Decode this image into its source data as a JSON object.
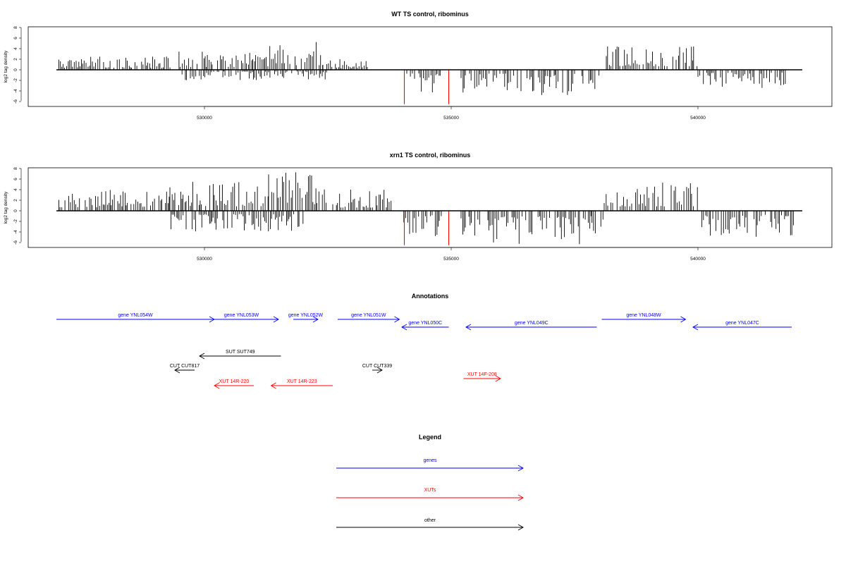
{
  "chart_data": [
    {
      "type": "bar",
      "title": "WT TS control, ribominus",
      "xlabel": "",
      "ylabel": "log2 tag density",
      "xlim": [
        527000,
        542000
      ],
      "ylim": [
        -7,
        8
      ],
      "x_ticks": [
        530000,
        535000,
        540000
      ],
      "y_ticks": [
        8,
        6,
        4,
        2,
        0,
        -2,
        -4,
        -6
      ],
      "baseline": 0,
      "grid": false,
      "bar_color": "#000000",
      "highlight_color": "#ff0000",
      "highlight_bars": [
        {
          "x": 534050,
          "y": -6.5
        },
        {
          "x": 534950,
          "y": -6.5
        }
      ],
      "density_profile": [
        {
          "start": 527050,
          "end": 529400,
          "strand": "+",
          "max": 2.5
        },
        {
          "start": 529400,
          "end": 531300,
          "strand": "+",
          "max": 3.5
        },
        {
          "start": 531300,
          "end": 532400,
          "strand": "+",
          "max": 5.8
        },
        {
          "start": 532400,
          "end": 533300,
          "strand": "+",
          "max": 2.0
        },
        {
          "start": 529500,
          "end": 532500,
          "strand": "-",
          "max": -2.0
        },
        {
          "start": 534000,
          "end": 534800,
          "strand": "-",
          "max": -4.5
        },
        {
          "start": 535200,
          "end": 538000,
          "strand": "-",
          "max": -4.8
        },
        {
          "start": 538100,
          "end": 540000,
          "strand": "+",
          "max": 4.5
        },
        {
          "start": 540000,
          "end": 541800,
          "strand": "-",
          "max": -3.5
        }
      ]
    },
    {
      "type": "bar",
      "title": "xrn1 TS control, ribominus",
      "xlabel": "",
      "ylabel": "log2 tag density",
      "xlim": [
        527000,
        542000
      ],
      "ylim": [
        -7,
        8
      ],
      "x_ticks": [
        530000,
        535000,
        540000
      ],
      "y_ticks": [
        8,
        6,
        4,
        2,
        0,
        -2,
        -4,
        -6
      ],
      "baseline": 0,
      "grid": false,
      "bar_color": "#000000",
      "highlight_color": "#ff0000",
      "highlight_bars": [
        {
          "x": 534050,
          "y": -6.5
        },
        {
          "x": 534950,
          "y": -6.5
        }
      ],
      "density_profile": [
        {
          "start": 527050,
          "end": 529300,
          "strand": "+",
          "max": 4.5
        },
        {
          "start": 529300,
          "end": 531300,
          "strand": "+",
          "max": 5.5
        },
        {
          "start": 531300,
          "end": 532500,
          "strand": "+",
          "max": 7.5
        },
        {
          "start": 532600,
          "end": 533800,
          "strand": "+",
          "max": 4.0
        },
        {
          "start": 529300,
          "end": 532000,
          "strand": "-",
          "max": -4.0
        },
        {
          "start": 534000,
          "end": 534800,
          "strand": "-",
          "max": -5.0
        },
        {
          "start": 535200,
          "end": 538100,
          "strand": "-",
          "max": -6.8
        },
        {
          "start": 538100,
          "end": 540000,
          "strand": "+",
          "max": 5.5
        },
        {
          "start": 540000,
          "end": 542000,
          "strand": "-",
          "max": -5.0
        }
      ]
    }
  ],
  "annotations": {
    "title": "Annotations",
    "xlim": [
      527000,
      542000
    ],
    "features": [
      {
        "label": "gene YNL054W",
        "start": 527000,
        "end": 530200,
        "strand": "+",
        "row": 0,
        "type": "gene",
        "color": "#0000ff"
      },
      {
        "label": "gene YNL053W",
        "start": 530000,
        "end": 531500,
        "strand": "+",
        "row": 0,
        "type": "gene",
        "color": "#0000ff"
      },
      {
        "label": "gene YNL052W",
        "start": 531800,
        "end": 532300,
        "strand": "+",
        "row": 0,
        "type": "gene",
        "color": "#0000ff"
      },
      {
        "label": "gene YNL051W",
        "start": 532700,
        "end": 533950,
        "strand": "+",
        "row": 0,
        "type": "gene",
        "color": "#0000ff"
      },
      {
        "label": "gene YNL050C",
        "start": 534000,
        "end": 534950,
        "strand": "-",
        "row": 1,
        "type": "gene",
        "color": "#0000ff"
      },
      {
        "label": "gene YNL049C",
        "start": 535300,
        "end": 537950,
        "strand": "-",
        "row": 1,
        "type": "gene",
        "color": "#0000ff"
      },
      {
        "label": "gene YNL048W",
        "start": 538050,
        "end": 539750,
        "strand": "+",
        "row": 0,
        "type": "gene",
        "color": "#0000ff"
      },
      {
        "label": "gene YNL047C",
        "start": 539900,
        "end": 541900,
        "strand": "-",
        "row": 1,
        "type": "gene",
        "color": "#0000ff"
      },
      {
        "label": "SUT SUT749",
        "start": 529900,
        "end": 531550,
        "strand": "-",
        "row": 4,
        "type": "other",
        "color": "#000000"
      },
      {
        "label": "CUT CUT817",
        "start": 529400,
        "end": 529800,
        "strand": "-",
        "row": 5,
        "type": "other",
        "color": "#000000"
      },
      {
        "label": "CUT CUT339",
        "start": 533400,
        "end": 533600,
        "strand": "+",
        "row": 5,
        "type": "other",
        "color": "#000000"
      },
      {
        "label": "XUT 14R-220",
        "start": 530200,
        "end": 531000,
        "strand": "-",
        "row": 7,
        "type": "XUT",
        "color": "#ff0000"
      },
      {
        "label": "XUT 14R-223",
        "start": 531350,
        "end": 532600,
        "strand": "-",
        "row": 7,
        "type": "XUT",
        "color": "#ff0000"
      },
      {
        "label": "XUT 14F-208",
        "start": 535250,
        "end": 536000,
        "strand": "+",
        "row": 6,
        "type": "XUT",
        "color": "#ff0000"
      }
    ]
  },
  "legend": {
    "title": "Legend",
    "items": [
      {
        "label": "genes",
        "color": "#0000ff"
      },
      {
        "label": "XUTs",
        "color": "#ff0000"
      },
      {
        "label": "other",
        "color": "#000000"
      }
    ]
  }
}
